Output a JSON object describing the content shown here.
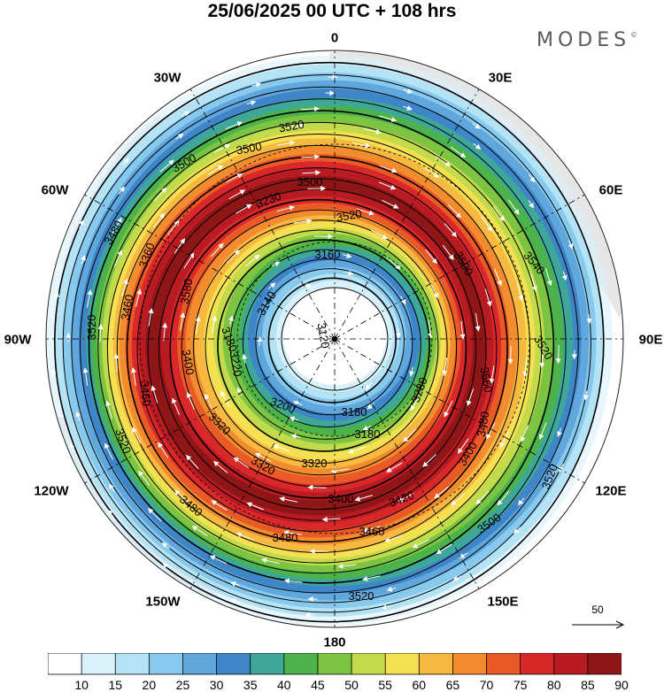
{
  "title": "25/06/2025  00 UTC  + 108 hrs",
  "brand": "MODES",
  "brand_mark": "©",
  "longitude_labels": {
    "l0": "0",
    "l30e": "30E",
    "l60e": "60E",
    "l90e": "90E",
    "l120e": "120E",
    "l150e": "150E",
    "l180": "180",
    "l150w": "150W",
    "l120w": "120W",
    "l90w": "90W",
    "l60w": "60W",
    "l30w": "30W"
  },
  "contour_labels": [
    "3120",
    "3140",
    "3180",
    "3180",
    "3200",
    "3220",
    "3280",
    "3320",
    "3320",
    "3320",
    "3360",
    "3400",
    "3400",
    "3400",
    "3420",
    "3460",
    "3460",
    "3480",
    "3480",
    "3480",
    "3480",
    "3500",
    "3500",
    "3500",
    "3500",
    "3520",
    "3520",
    "3520",
    "3520",
    "3520",
    "3520",
    "3540",
    "3560",
    "3580",
    "3460",
    "3160",
    "3230",
    "3180",
    "3520",
    "3500"
  ],
  "reference_vector": {
    "label": "50"
  },
  "colorbar": {
    "ticks": [
      "10",
      "15",
      "20",
      "25",
      "30",
      "35",
      "40",
      "45",
      "50",
      "55",
      "60",
      "65",
      "70",
      "75",
      "80",
      "85",
      "90"
    ],
    "colors": [
      "#ffffff",
      "#d8f1fb",
      "#b4e3f6",
      "#88c9ee",
      "#5fa7dd",
      "#3f86c8",
      "#3fa79a",
      "#4cb24a",
      "#7dc443",
      "#c2db4a",
      "#f5e052",
      "#f7b940",
      "#f28c2e",
      "#ea5a27",
      "#d9282a",
      "#b81b22",
      "#8e1617"
    ]
  },
  "colors": {
    "land": "#dcdcdc",
    "background": "#ffffff",
    "contour": "#000000",
    "arrow": "#ffffff"
  }
}
